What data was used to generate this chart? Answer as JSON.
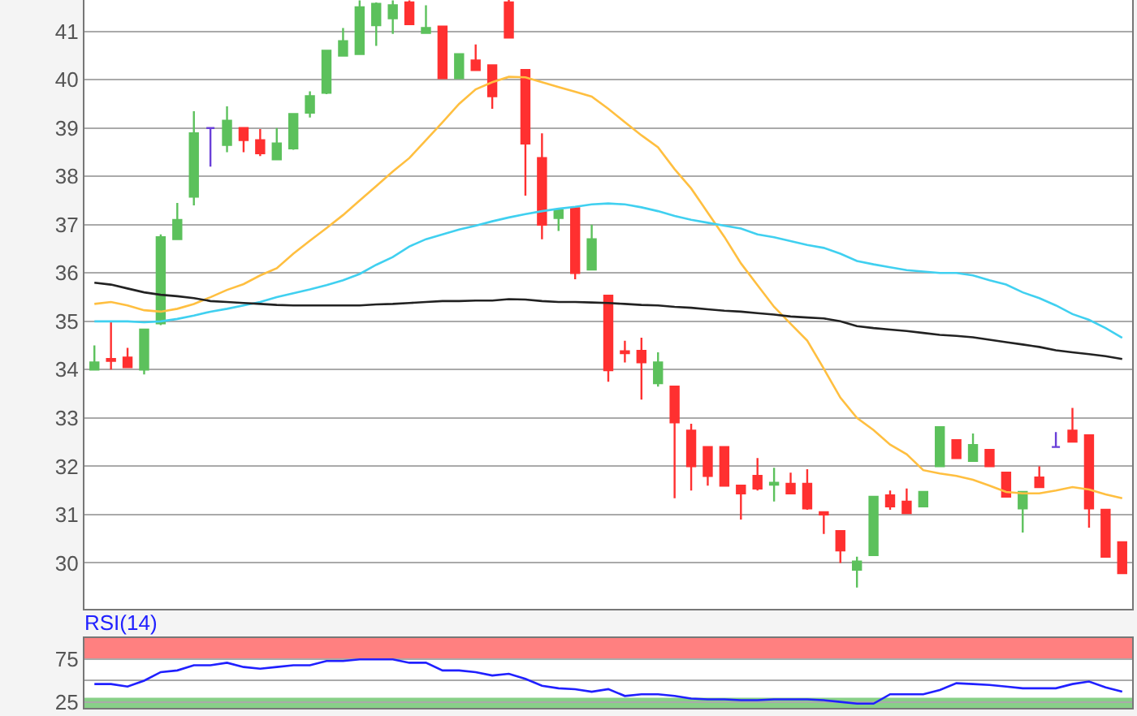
{
  "chart_data": [
    {
      "type": "candlestick",
      "categories": [
        null,
        null,
        null,
        null,
        null,
        null,
        null,
        null,
        null,
        null,
        null,
        null,
        null,
        null,
        null,
        null,
        null,
        null,
        null,
        null,
        null,
        null,
        null,
        null,
        null,
        null,
        null,
        null,
        null,
        null,
        null,
        null,
        null,
        null,
        null,
        null,
        null,
        null,
        null,
        null,
        null,
        null,
        null,
        null,
        null,
        null,
        null,
        null,
        null,
        null,
        null,
        null,
        null,
        null,
        null,
        null,
        null,
        null,
        null,
        null,
        null,
        null,
        null
      ],
      "ohlc": [
        [
          34.0,
          34.5,
          34.0,
          34.15
        ],
        [
          34.22,
          35.0,
          34.0,
          34.18
        ],
        [
          34.25,
          34.45,
          34.05,
          34.05
        ],
        [
          34.0,
          34.85,
          33.9,
          34.83
        ],
        [
          34.96,
          36.8,
          34.92,
          36.74
        ],
        [
          36.7,
          37.45,
          36.7,
          37.1
        ],
        [
          37.58,
          39.35,
          37.4,
          38.89
        ],
        [
          39.0,
          39.0,
          38.2,
          39.0
        ],
        [
          38.65,
          39.45,
          38.5,
          39.15
        ],
        [
          39.0,
          39.0,
          38.5,
          38.75
        ],
        [
          38.75,
          38.98,
          38.42,
          38.48
        ],
        [
          38.35,
          39.0,
          38.35,
          38.68
        ],
        [
          38.58,
          39.3,
          38.55,
          39.29
        ],
        [
          39.32,
          39.76,
          39.22,
          39.66
        ],
        [
          39.73,
          40.62,
          39.7,
          40.6
        ],
        [
          40.5,
          41.07,
          40.5,
          40.8
        ],
        [
          40.53,
          41.64,
          40.53,
          41.5
        ],
        [
          41.13,
          41.6,
          40.7,
          41.57
        ],
        [
          41.27,
          41.64,
          40.95,
          41.54
        ],
        [
          41.6,
          41.64,
          41.13,
          41.15
        ],
        [
          40.97,
          41.54,
          40.97,
          41.07
        ],
        [
          41.1,
          41.1,
          40.03,
          40.03
        ],
        [
          40.03,
          40.53,
          40.03,
          40.53
        ],
        [
          40.4,
          40.73,
          40.2,
          40.2
        ],
        [
          40.3,
          40.3,
          39.4,
          39.66
        ],
        [
          41.6,
          41.65,
          40.87,
          40.87
        ],
        [
          40.2,
          40.2,
          37.6,
          38.68
        ],
        [
          38.38,
          38.89,
          36.7,
          37.0
        ],
        [
          37.14,
          37.3,
          36.87,
          37.3
        ],
        [
          37.34,
          37.34,
          35.87,
          36.0
        ],
        [
          36.07,
          37.0,
          36.07,
          36.7
        ],
        [
          35.53,
          35.53,
          33.75,
          33.99
        ],
        [
          34.38,
          34.6,
          34.15,
          34.34
        ],
        [
          34.39,
          34.66,
          33.38,
          34.15
        ],
        [
          33.72,
          34.36,
          33.65,
          34.15
        ],
        [
          33.65,
          33.65,
          31.34,
          32.91
        ],
        [
          32.74,
          32.88,
          31.5,
          32.0
        ],
        [
          32.4,
          32.4,
          31.6,
          31.8
        ],
        [
          32.4,
          32.4,
          31.6,
          31.6
        ],
        [
          31.6,
          31.6,
          30.9,
          31.44
        ],
        [
          31.8,
          32.17,
          31.5,
          31.54
        ],
        [
          31.62,
          31.97,
          31.27,
          31.66
        ],
        [
          31.64,
          31.87,
          31.44,
          31.44
        ],
        [
          31.64,
          31.94,
          31.1,
          31.13
        ],
        [
          31.05,
          31.05,
          30.6,
          31.0
        ],
        [
          30.66,
          30.66,
          30.0,
          30.26
        ],
        [
          29.86,
          30.13,
          29.49,
          30.03
        ],
        [
          30.16,
          31.37,
          30.16,
          31.37
        ],
        [
          31.4,
          31.5,
          31.1,
          31.17
        ],
        [
          31.27,
          31.54,
          31.03,
          31.03
        ],
        [
          31.17,
          31.47,
          31.17,
          31.47
        ],
        [
          32.0,
          32.81,
          32.0,
          32.81
        ],
        [
          32.54,
          32.54,
          32.17,
          32.17
        ],
        [
          32.11,
          32.68,
          32.11,
          32.44
        ],
        [
          32.34,
          32.34,
          32.0,
          32.0
        ],
        [
          31.87,
          31.87,
          31.37,
          31.37
        ],
        [
          31.13,
          31.47,
          30.63,
          31.47
        ],
        [
          31.77,
          32.0,
          31.57,
          31.57
        ],
        [
          32.4,
          32.71,
          32.4,
          32.4
        ],
        [
          32.74,
          33.21,
          32.51,
          32.51
        ],
        [
          32.64,
          32.64,
          30.73,
          31.13
        ],
        [
          31.1,
          31.1,
          30.13,
          30.13
        ],
        [
          30.43,
          30.43,
          29.79,
          29.79
        ]
      ],
      "colors": [
        "#5cc15c",
        "#ff3030",
        "#ff3030",
        "#5cc15c",
        "#5cc15c",
        "#5cc15c",
        "#5cc15c",
        "#6a3fd8",
        "#5cc15c",
        "#ff3030",
        "#ff3030",
        "#5cc15c",
        "#5cc15c",
        "#5cc15c",
        "#5cc15c",
        "#5cc15c",
        "#5cc15c",
        "#5cc15c",
        "#5cc15c",
        "#ff3030",
        "#5cc15c",
        "#ff3030",
        "#5cc15c",
        "#ff3030",
        "#ff3030",
        "#ff3030",
        "#ff3030",
        "#ff3030",
        "#5cc15c",
        "#ff3030",
        "#5cc15c",
        "#ff3030",
        "#ff3030",
        "#ff3030",
        "#5cc15c",
        "#ff3030",
        "#ff3030",
        "#ff3030",
        "#ff3030",
        "#ff3030",
        "#ff3030",
        "#5cc15c",
        "#ff3030",
        "#ff3030",
        "#ff3030",
        "#ff3030",
        "#5cc15c",
        "#5cc15c",
        "#ff3030",
        "#ff3030",
        "#5cc15c",
        "#5cc15c",
        "#ff3030",
        "#5cc15c",
        "#ff3030",
        "#ff3030",
        "#5cc15c",
        "#ff3030",
        "#6a3fd8",
        "#ff3030",
        "#ff3030",
        "#ff3030",
        "#ff3030"
      ],
      "series": [
        {
          "type": "line",
          "color": "#ffbf40",
          "values": [
            35.36,
            35.4,
            35.33,
            35.23,
            35.2,
            35.26,
            35.36,
            35.5,
            35.65,
            35.77,
            35.95,
            36.1,
            36.4,
            36.67,
            36.93,
            37.2,
            37.5,
            37.8,
            38.1,
            38.38,
            38.75,
            39.12,
            39.5,
            39.8,
            39.95,
            40.06,
            40.05,
            39.95,
            39.85,
            39.75,
            39.65,
            39.4,
            39.12,
            38.85,
            38.6,
            38.15,
            37.75,
            37.25,
            36.75,
            36.2,
            35.75,
            35.3,
            34.95,
            34.6,
            34.02,
            33.42,
            33.0,
            32.75,
            32.45,
            32.25,
            31.92,
            31.85,
            31.8,
            31.72,
            31.6,
            31.47,
            31.44,
            31.44,
            31.5,
            31.57,
            31.52,
            31.42,
            31.34
          ]
        },
        {
          "type": "line",
          "color": "#40d0f0",
          "values": [
            35.0,
            35.0,
            35.0,
            34.98,
            35.0,
            35.05,
            35.12,
            35.2,
            35.26,
            35.33,
            35.4,
            35.5,
            35.58,
            35.66,
            35.75,
            35.85,
            35.98,
            36.17,
            36.33,
            36.55,
            36.7,
            36.8,
            36.9,
            36.98,
            37.07,
            37.15,
            37.22,
            37.28,
            37.33,
            37.37,
            37.42,
            37.44,
            37.42,
            37.36,
            37.28,
            37.18,
            37.1,
            37.04,
            36.98,
            36.92,
            36.8,
            36.74,
            36.66,
            36.58,
            36.52,
            36.4,
            36.25,
            36.18,
            36.12,
            36.06,
            36.03,
            36.0,
            36.0,
            35.95,
            35.85,
            35.76,
            35.6,
            35.48,
            35.33,
            35.15,
            35.03,
            34.86,
            34.66
          ]
        },
        {
          "type": "line",
          "color": "#222222",
          "values": [
            35.8,
            35.76,
            35.68,
            35.6,
            35.55,
            35.52,
            35.48,
            35.42,
            35.4,
            35.38,
            35.36,
            35.34,
            35.33,
            35.33,
            35.33,
            35.33,
            35.33,
            35.35,
            35.36,
            35.38,
            35.4,
            35.42,
            35.42,
            35.43,
            35.43,
            35.46,
            35.45,
            35.42,
            35.4,
            35.4,
            35.39,
            35.38,
            35.36,
            35.34,
            35.33,
            35.3,
            35.28,
            35.25,
            35.22,
            35.2,
            35.17,
            35.14,
            35.1,
            35.08,
            35.06,
            35.0,
            34.9,
            34.86,
            34.83,
            34.8,
            34.76,
            34.72,
            34.7,
            34.67,
            34.62,
            34.57,
            34.52,
            34.47,
            34.4,
            34.36,
            34.32,
            34.28,
            34.22
          ]
        }
      ],
      "ylim": [
        29.05,
        41.65
      ],
      "yticks": [
        30,
        31,
        32,
        33,
        34,
        35,
        36,
        37,
        38,
        39,
        40,
        41
      ],
      "grid": "y",
      "tick_labels": "y"
    },
    {
      "type": "line",
      "title": "RSI(14)",
      "categories": [
        null,
        null,
        null,
        null,
        null,
        null,
        null,
        null,
        null,
        null,
        null,
        null,
        null,
        null,
        null,
        null,
        null,
        null,
        null,
        null,
        null,
        null,
        null,
        null,
        null,
        null,
        null,
        null,
        null,
        null,
        null,
        null,
        null,
        null,
        null,
        null,
        null,
        null,
        null,
        null,
        null,
        null,
        null,
        null,
        null,
        null,
        null,
        null,
        null,
        null,
        null,
        null,
        null,
        null,
        null,
        null,
        null,
        null,
        null,
        null,
        null,
        null,
        null
      ],
      "series": [
        {
          "color": "#2020ff",
          "values": [
            46,
            46,
            43,
            50,
            60,
            62,
            68,
            68,
            71,
            66,
            64,
            66,
            68,
            68,
            73,
            73,
            75,
            75,
            75,
            71,
            71,
            62,
            62,
            60,
            56,
            58,
            52,
            44,
            41,
            40,
            37,
            40,
            32,
            34,
            34,
            32,
            29,
            28,
            28,
            27,
            27,
            28,
            28,
            28,
            27,
            25,
            23,
            23,
            34,
            34,
            34,
            39,
            47,
            46,
            45,
            43,
            41,
            41,
            41,
            46,
            49,
            42,
            37
          ]
        }
      ],
      "ylim": [
        18,
        100
      ],
      "yticks": [
        25,
        {
          "value": 50,
          "label": null
        },
        75
      ],
      "grid": "y",
      "tick_labels": "y",
      "bands": [
        {
          "axis": "y",
          "from": 75,
          "to": 100,
          "color": "#ff8080"
        },
        {
          "axis": "y",
          "from": 18,
          "to": 30,
          "color": "#88d088"
        }
      ]
    }
  ]
}
